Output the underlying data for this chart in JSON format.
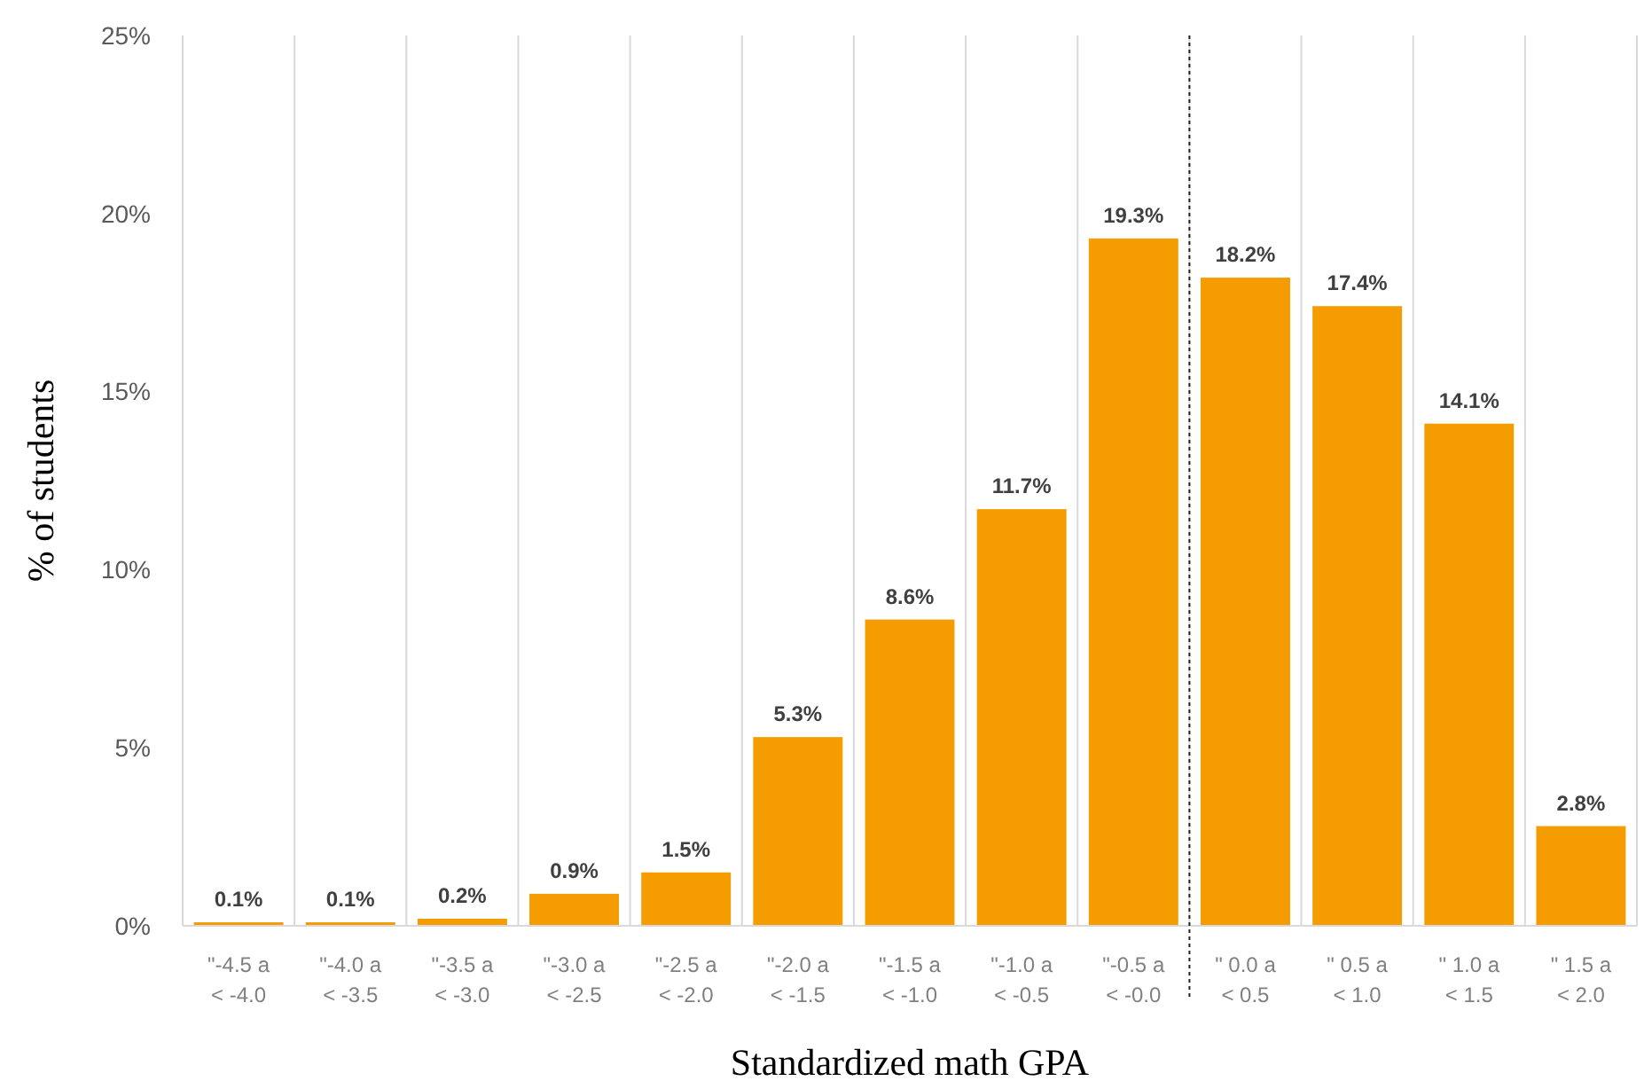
{
  "chart_data": {
    "type": "bar",
    "xlabel": "Standardized math GPA",
    "ylabel": "% of students",
    "categories": [
      "\"-4.5 a\n< -4.0",
      "\"-4.0 a\n< -3.5",
      "\"-3.5 a\n< -3.0",
      "\"-3.0 a\n< -2.5",
      "\"-2.5 a\n< -2.0",
      "\"-2.0 a\n< -1.5",
      "\"-1.5 a\n< -1.0",
      "\"-1.0 a\n< -0.5",
      "\"-0.5 a\n< -0.0",
      "\" 0.0 a\n< 0.5",
      "\" 0.5 a\n< 1.0",
      "\" 1.0 a\n< 1.5",
      "\" 1.5 a\n< 2.0"
    ],
    "values": [
      0.1,
      0.1,
      0.2,
      0.9,
      1.5,
      5.3,
      8.6,
      11.7,
      19.3,
      18.2,
      17.4,
      14.1,
      2.8
    ],
    "value_labels": [
      "0.1%",
      "0.1%",
      "0.2%",
      "0.9%",
      "1.5%",
      "5.3%",
      "8.6%",
      "11.7%",
      "19.3%",
      "18.2%",
      "17.4%",
      "14.1%",
      "2.8%"
    ],
    "color": "#f59c00",
    "ylim": [
      0,
      25
    ],
    "yticks": [
      {
        "value": 0,
        "label": "0%"
      },
      {
        "value": 5,
        "label": "5%"
      },
      {
        "value": 10,
        "label": "10%"
      },
      {
        "value": 15,
        "label": "15%"
      },
      {
        "value": 20,
        "label": "20%"
      },
      {
        "value": 25,
        "label": "25%"
      }
    ],
    "grid": "x",
    "ref_lines": [
      {
        "axis": "x",
        "value": "\" 0.0 a\n< 0.5",
        "line_style": "dotted",
        "color": "#222222"
      }
    ]
  }
}
